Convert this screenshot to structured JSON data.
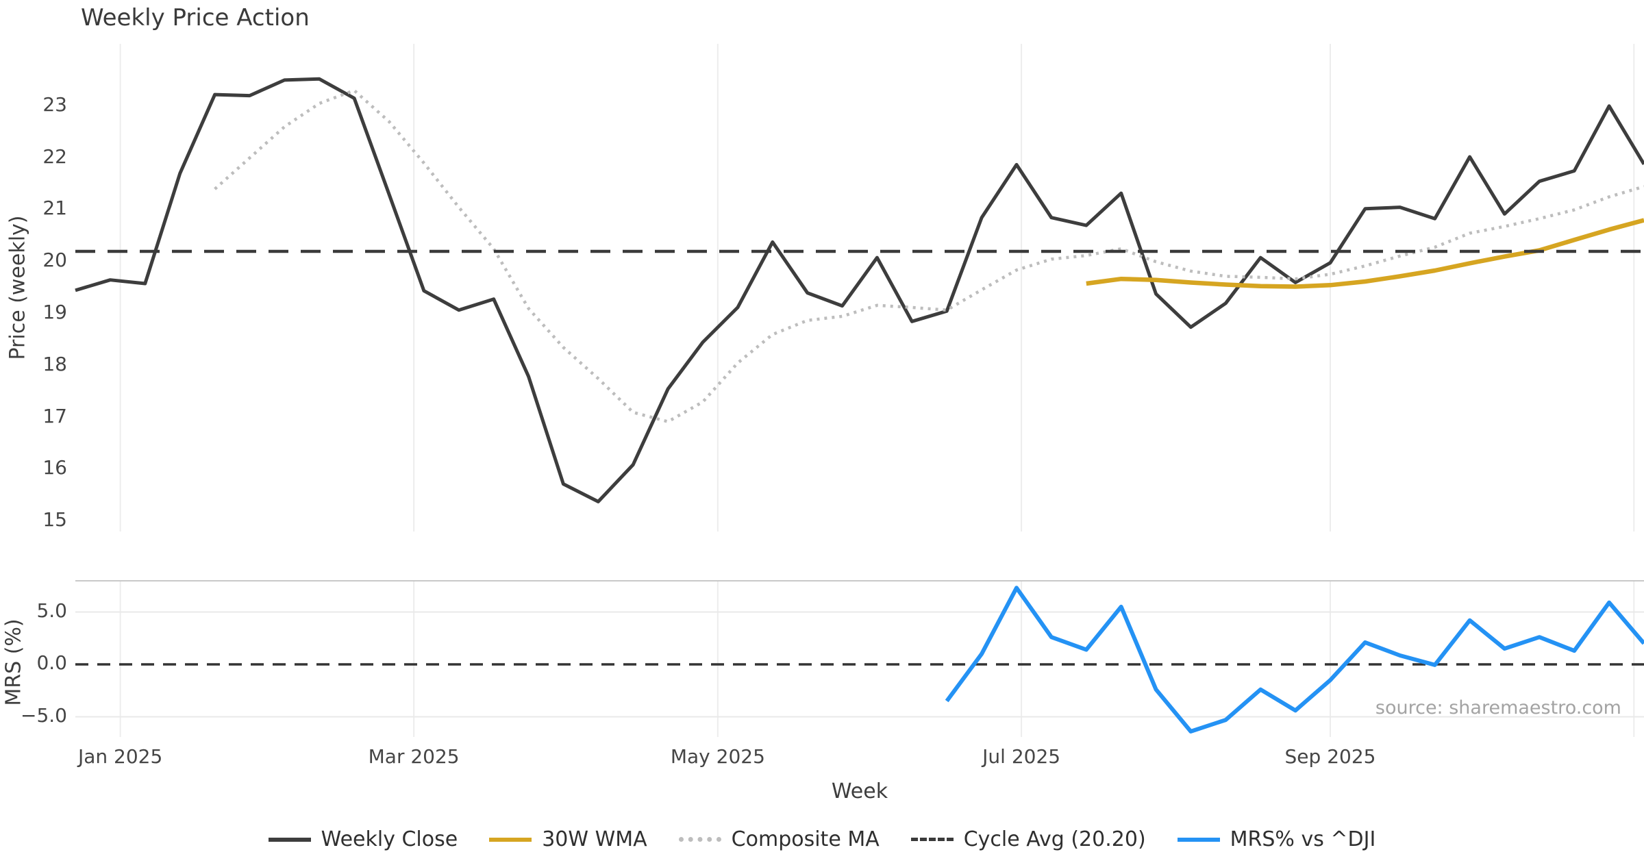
{
  "chart_data": {
    "type": "line",
    "title": "Weekly Price Action",
    "xlabel": "Week",
    "source": "source: sharemaestro.com",
    "x": {
      "n_weeks": 46,
      "tick_labels": [
        {
          "label": "Jan 2025",
          "week": 1.29
        },
        {
          "label": "Mar 2025",
          "week": 9.71
        },
        {
          "label": "May 2025",
          "week": 18.43
        },
        {
          "label": "Jul 2025",
          "week": 27.14
        },
        {
          "label": "Sep 2025",
          "week": 36.0
        }
      ],
      "gridline_weeks": [
        1.29,
        9.71,
        18.43,
        27.14,
        36.0,
        44.71
      ]
    },
    "panels": [
      {
        "ylabel": "Price (weekly)",
        "ylim": [
          14.8,
          24.2
        ],
        "yticks": [
          {
            "label": "23",
            "value": 23
          },
          {
            "label": "22",
            "value": 22
          },
          {
            "label": "21",
            "value": 21
          },
          {
            "label": "20",
            "value": 20
          },
          {
            "label": "19",
            "value": 19
          },
          {
            "label": "18",
            "value": 18
          },
          {
            "label": "17",
            "value": 17
          },
          {
            "label": "16",
            "value": 16
          },
          {
            "label": "15",
            "value": 15
          }
        ],
        "grid": "vertical-only"
      },
      {
        "ylabel": "MRS (%)",
        "ylim": [
          -6.9,
          8.0
        ],
        "yticks": [
          {
            "label": "5.0",
            "value": 5
          },
          {
            "label": "0.0",
            "value": 0
          },
          {
            "label": "−5.0",
            "value": -5
          }
        ],
        "grid": "both"
      }
    ],
    "series": [
      {
        "name": "Weekly Close",
        "panel": 0,
        "style": "solid",
        "color": "#3d3d3d",
        "width": 5,
        "start_week": 0,
        "values": [
          19.45,
          19.65,
          19.58,
          21.7,
          23.22,
          23.2,
          23.5,
          23.52,
          23.15,
          21.3,
          19.44,
          19.07,
          19.28,
          17.79,
          15.72,
          15.38,
          16.09,
          17.55,
          18.45,
          19.12,
          20.38,
          19.4,
          19.15,
          20.08,
          18.85,
          19.05,
          20.85,
          21.87,
          20.85,
          20.7,
          21.32,
          19.38,
          18.74,
          19.2,
          20.08,
          19.6,
          19.98,
          21.02,
          21.05,
          20.83,
          22.02,
          20.92,
          21.55,
          21.75,
          23.0,
          21.88
        ]
      },
      {
        "name": "30W WMA",
        "panel": 0,
        "style": "solid",
        "color": "#d6a521",
        "width": 6.5,
        "start_week": 29,
        "values": [
          19.58,
          19.67,
          19.65,
          19.6,
          19.56,
          19.53,
          19.52,
          19.55,
          19.62,
          19.72,
          19.83,
          19.97,
          20.1,
          20.22,
          20.42,
          20.62,
          20.8
        ]
      },
      {
        "name": "Composite MA",
        "panel": 0,
        "style": "dotted",
        "color": "#bdbdbd",
        "width": 4.5,
        "start_week": 4,
        "values": [
          21.4,
          22.0,
          22.6,
          23.05,
          23.3,
          22.7,
          21.9,
          21.05,
          20.25,
          19.1,
          18.35,
          17.75,
          17.1,
          16.92,
          17.3,
          18.05,
          18.6,
          18.87,
          18.95,
          19.16,
          19.12,
          19.07,
          19.46,
          19.84,
          20.05,
          20.12,
          20.25,
          20.0,
          19.82,
          19.72,
          19.7,
          19.67,
          19.76,
          19.92,
          20.11,
          20.28,
          20.55,
          20.68,
          20.83,
          21.0,
          21.25,
          21.45
        ]
      },
      {
        "name": "Cycle Avg (20.20)",
        "panel": 0,
        "style": "dashed",
        "color": "#3a3a3a",
        "width": 4.5,
        "hline": 20.2
      },
      {
        "name": "MRS% vs ^DJI",
        "panel": 1,
        "style": "solid",
        "color": "#2492f4",
        "width": 6,
        "start_week": 25,
        "values": [
          -3.5,
          1.0,
          7.3,
          2.6,
          1.4,
          5.5,
          -2.4,
          -6.4,
          -5.3,
          -2.4,
          -4.4,
          -1.5,
          2.1,
          0.85,
          -0.05,
          4.2,
          1.5,
          2.6,
          1.3,
          5.9,
          2.0
        ]
      }
    ],
    "zero_line": {
      "panel": 1,
      "value": 0.0,
      "style": "dashed",
      "color": "#333333"
    }
  }
}
